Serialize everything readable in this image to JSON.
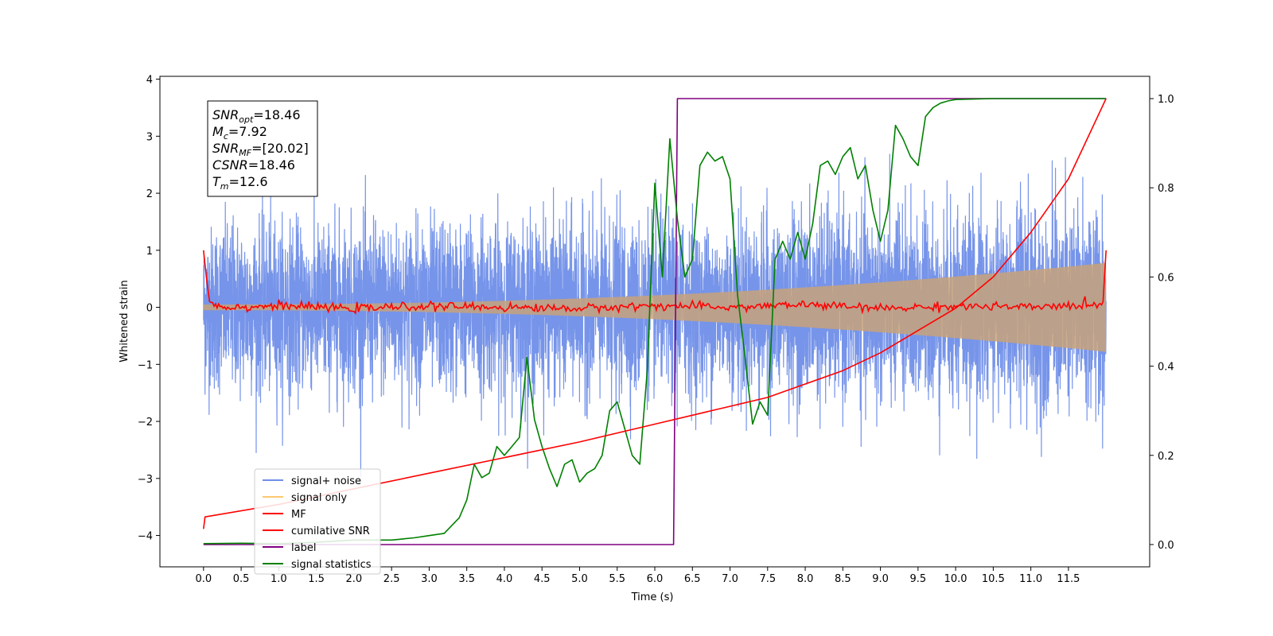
{
  "chart_data": {
    "type": "line",
    "xlabel": "Time (s)",
    "ylabel_left": "Whitened strain",
    "xlim": [
      -0.58,
      12.58
    ],
    "ylim_left": [
      -4.55,
      4.05
    ],
    "ylim_right": [
      -0.05,
      1.05
    ],
    "x_ticks": [
      0.0,
      0.5,
      1.0,
      1.5,
      2.0,
      2.5,
      3.0,
      3.5,
      4.0,
      4.5,
      5.0,
      5.5,
      6.0,
      6.5,
      7.0,
      7.5,
      8.0,
      8.5,
      9.0,
      9.5,
      10.0,
      10.5,
      11.0,
      11.5
    ],
    "x_tick_labels": [
      "0.0",
      "0.5",
      "1.0",
      "1.5",
      "2.0",
      "2.5",
      "3.0",
      "3.5",
      "4.0",
      "4.5",
      "5.0",
      "5.5",
      "6.0",
      "6.5",
      "7.0",
      "7.5",
      "8.0",
      "8.5",
      "9.0",
      "9.5",
      "10.0",
      "10.5",
      "11.0",
      "11.5"
    ],
    "y_ticks_left": [
      -4,
      -3,
      -2,
      -1,
      0,
      1,
      2,
      3,
      4
    ],
    "y_tick_labels_left": [
      "−4",
      "−3",
      "−2",
      "−1",
      "0",
      "1",
      "2",
      "3",
      "4"
    ],
    "y_ticks_right": [
      0.0,
      0.2,
      0.4,
      0.6,
      0.8,
      1.0
    ],
    "y_tick_labels_right": [
      "0.0",
      "0.2",
      "0.4",
      "0.6",
      "0.8",
      "1.0"
    ],
    "series": [
      {
        "name": "signal+ noise",
        "color": "#6f8ee8",
        "axis": "left",
        "kind": "noise",
        "x_range": [
          0.0,
          12.0
        ],
        "noise_std": 0.72,
        "signal_amplitude_range": [
          0.05,
          0.78
        ]
      },
      {
        "name": "signal only",
        "color": "#ffc870",
        "axis": "left",
        "kind": "envelope",
        "x_range": [
          0.0,
          12.0
        ],
        "amplitude_range": [
          0.05,
          0.78
        ]
      },
      {
        "name": "MF",
        "color": "#ff0000",
        "axis": "left",
        "kind": "line",
        "x": [
          0.0,
          0.04,
          0.08,
          0.2,
          0.5,
          1.0,
          2.0,
          3.0,
          4.0,
          5.0,
          6.0,
          7.0,
          8.0,
          9.0,
          10.0,
          11.0,
          11.9,
          11.96,
          12.0
        ],
        "y": [
          1.0,
          0.5,
          0.1,
          0.02,
          0.0,
          0.03,
          -0.02,
          0.02,
          0.0,
          -0.02,
          0.03,
          0.0,
          0.05,
          -0.02,
          0.02,
          0.0,
          0.05,
          0.1,
          1.0
        ]
      },
      {
        "name": "cumilative SNR",
        "color": "#ff0000",
        "axis": "right",
        "kind": "line",
        "x": [
          0.0,
          0.02,
          1.0,
          2.0,
          3.0,
          4.0,
          5.0,
          6.0,
          7.0,
          7.5,
          8.0,
          8.5,
          9.0,
          9.5,
          10.0,
          10.5,
          11.0,
          11.5,
          12.0
        ],
        "y": [
          0.035,
          0.062,
          0.09,
          0.125,
          0.16,
          0.195,
          0.23,
          0.27,
          0.31,
          0.33,
          0.36,
          0.39,
          0.43,
          0.48,
          0.53,
          0.6,
          0.7,
          0.82,
          1.0
        ]
      },
      {
        "name": "label",
        "color": "#800080",
        "axis": "right",
        "kind": "line",
        "x": [
          0.0,
          6.25,
          6.3,
          12.0
        ],
        "y": [
          0.0,
          0.0,
          1.0,
          1.0
        ]
      },
      {
        "name": "signal statistics",
        "color": "#008000",
        "axis": "right",
        "kind": "line",
        "x": [
          0.0,
          0.5,
          1.0,
          1.5,
          2.0,
          2.5,
          2.8,
          3.0,
          3.2,
          3.4,
          3.5,
          3.6,
          3.7,
          3.8,
          3.9,
          4.0,
          4.1,
          4.2,
          4.3,
          4.4,
          4.5,
          4.6,
          4.7,
          4.8,
          4.9,
          5.0,
          5.1,
          5.2,
          5.3,
          5.4,
          5.5,
          5.6,
          5.7,
          5.8,
          5.9,
          6.0,
          6.1,
          6.2,
          6.3,
          6.4,
          6.5,
          6.6,
          6.7,
          6.8,
          6.9,
          7.0,
          7.1,
          7.2,
          7.3,
          7.4,
          7.5,
          7.6,
          7.7,
          7.8,
          7.9,
          8.0,
          8.1,
          8.2,
          8.3,
          8.4,
          8.5,
          8.6,
          8.7,
          8.8,
          8.9,
          9.0,
          9.1,
          9.2,
          9.3,
          9.4,
          9.5,
          9.6,
          9.7,
          9.8,
          9.9,
          10.0,
          10.5,
          11.0,
          11.5,
          12.0
        ],
        "y": [
          0.002,
          0.003,
          0.002,
          0.005,
          0.01,
          0.01,
          0.015,
          0.02,
          0.025,
          0.06,
          0.1,
          0.18,
          0.15,
          0.16,
          0.22,
          0.2,
          0.22,
          0.24,
          0.42,
          0.28,
          0.22,
          0.17,
          0.13,
          0.18,
          0.19,
          0.14,
          0.16,
          0.17,
          0.2,
          0.3,
          0.32,
          0.26,
          0.2,
          0.18,
          0.39,
          0.81,
          0.6,
          0.91,
          0.73,
          0.6,
          0.64,
          0.85,
          0.88,
          0.86,
          0.87,
          0.82,
          0.56,
          0.42,
          0.27,
          0.32,
          0.29,
          0.64,
          0.68,
          0.64,
          0.7,
          0.64,
          0.72,
          0.85,
          0.86,
          0.83,
          0.87,
          0.89,
          0.82,
          0.85,
          0.75,
          0.68,
          0.75,
          0.94,
          0.91,
          0.87,
          0.85,
          0.96,
          0.98,
          0.99,
          0.995,
          0.998,
          1.0,
          1.0,
          1.0,
          1.0
        ]
      }
    ],
    "legend": {
      "position": "lower-left",
      "entries": [
        "signal+ noise",
        "signal only",
        "MF",
        "cumilative SNR",
        "label",
        "signal statistics"
      ]
    },
    "annotation": {
      "position": "upper-left",
      "lines": [
        {
          "base": "SNR",
          "sub": "opt",
          "value": "=18.46"
        },
        {
          "base": "M",
          "sub": "c",
          "value": "=7.92"
        },
        {
          "base": "SNR",
          "sub": "MF",
          "value": "=[20.02]"
        },
        {
          "base": "CSNR",
          "sub": "",
          "value": "=18.46"
        },
        {
          "base": "T",
          "sub": "m",
          "value": "=12.6"
        }
      ]
    }
  }
}
